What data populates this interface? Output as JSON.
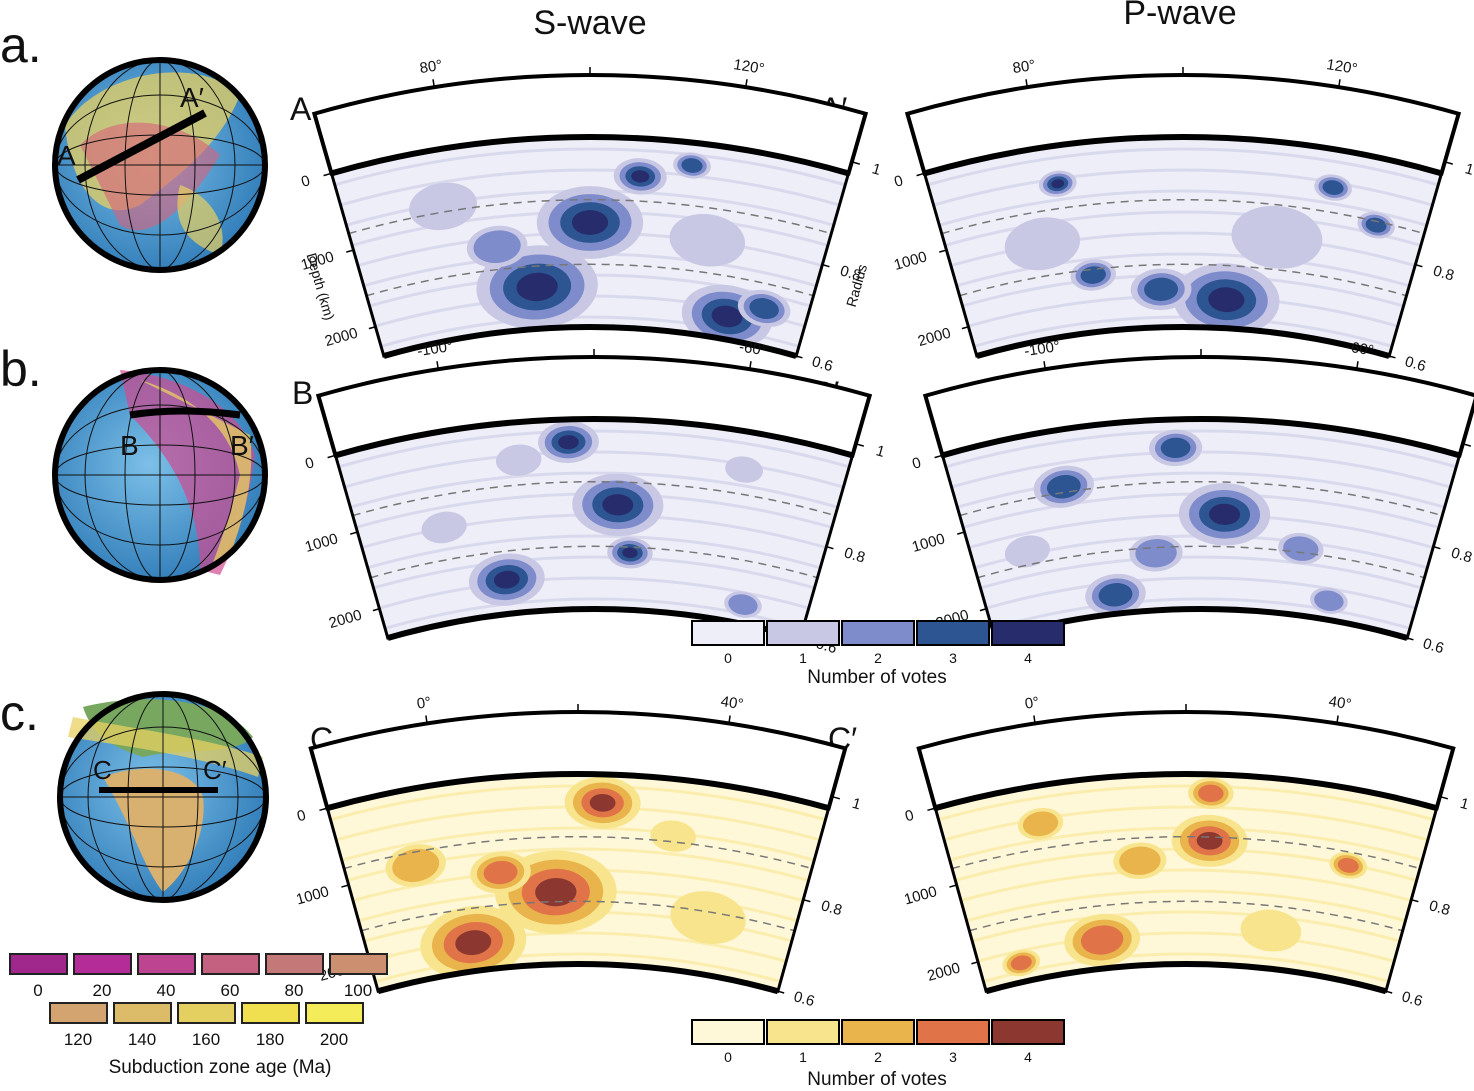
{
  "columns": {
    "s_wave": "S-wave",
    "p_wave": "P-wave"
  },
  "panels": [
    {
      "letter": "a.",
      "start": "A",
      "end": "A′",
      "lon_ticks": [
        "80°",
        "120°"
      ],
      "depth_ticks": [
        "0",
        "1000",
        "2000"
      ],
      "radius_ticks": [
        "1",
        "0.8",
        "0.6"
      ],
      "depth_axis_label": "Depth (km)",
      "radius_axis_label": "Radius"
    },
    {
      "letter": "b.",
      "start": "B",
      "end": "B′",
      "lon_ticks": [
        "-100°",
        "-60°"
      ],
      "depth_ticks": [
        "0",
        "1000",
        "2000"
      ],
      "radius_ticks": [
        "1",
        "0.8",
        "0.6"
      ]
    },
    {
      "letter": "c.",
      "start": "C",
      "end": "C′",
      "lon_ticks": [
        "0°",
        "40°"
      ],
      "depth_ticks": [
        "0",
        "1000",
        "2000"
      ],
      "radius_ticks": [
        "1",
        "0.8",
        "0.6"
      ]
    }
  ],
  "legend_blue": {
    "title": "Number of votes",
    "labels": [
      "0",
      "1",
      "2",
      "3",
      "4"
    ],
    "colors": [
      "#eeeef8",
      "#c8c8e4",
      "#7f8ccc",
      "#2c5592",
      "#262c6c"
    ]
  },
  "legend_red": {
    "title": "Number of votes",
    "labels": [
      "0",
      "1",
      "2",
      "3",
      "4"
    ],
    "colors": [
      "#fff8d8",
      "#f7e48c",
      "#eab44c",
      "#e07448",
      "#8c3830"
    ]
  },
  "legend_age": {
    "title": "Subduction zone age (Ma)",
    "labels": [
      "0",
      "20",
      "40",
      "60",
      "80",
      "100",
      "120",
      "140",
      "160",
      "180",
      "200"
    ],
    "colors": [
      "#a0288c",
      "#b42c98",
      "#bc4490",
      "#c46080",
      "#c47878",
      "#cc9070",
      "#d4a470",
      "#dcbc68",
      "#e4d060",
      "#f0e050",
      "#f4ec58"
    ]
  },
  "chart_data": {
    "type": "heatmap",
    "description_values": "vote counts 0–4 along cross-sections",
    "sections": [
      {
        "name": "A-A′ S-wave",
        "vote_levels": [
          0,
          1,
          2,
          3,
          4
        ]
      },
      {
        "name": "A-A′ P-wave",
        "vote_levels": [
          0,
          1,
          2,
          3,
          4
        ]
      },
      {
        "name": "B-B′ S-wave",
        "vote_levels": [
          0,
          1,
          2,
          3,
          4
        ]
      },
      {
        "name": "B-B′ P-wave",
        "vote_levels": [
          0,
          1,
          2,
          3,
          4
        ]
      },
      {
        "name": "C-C′ S-wave",
        "vote_levels": [
          0,
          1,
          2,
          3,
          4
        ]
      },
      {
        "name": "C-C′ P-wave",
        "vote_levels": [
          0,
          1,
          2,
          3,
          4
        ]
      }
    ]
  }
}
